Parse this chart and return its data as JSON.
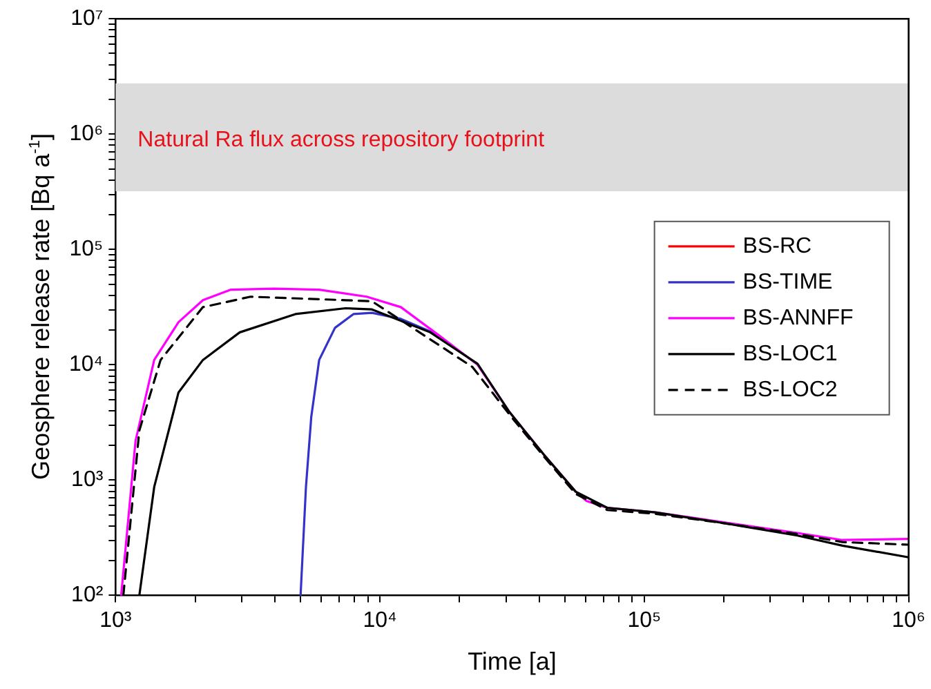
{
  "chart_data": {
    "type": "line",
    "xlabel": "Time [a]",
    "ylabel": "Geosphere release rate [Bq a$^{-1}$]",
    "log": "xy",
    "legend": "right",
    "xlim": [
      1000,
      1000000
    ],
    "ylim": [
      100,
      10000000
    ],
    "xticks": [
      {
        "value": 1000,
        "label": "10³"
      },
      {
        "value": 2000,
        "label": null
      },
      {
        "value": 3000,
        "label": null
      },
      {
        "value": 4000,
        "label": null
      },
      {
        "value": 5000,
        "label": null
      },
      {
        "value": 6000,
        "label": null
      },
      {
        "value": 7000,
        "label": null
      },
      {
        "value": 8000,
        "label": null
      },
      {
        "value": 9000,
        "label": null
      },
      {
        "value": 10000,
        "label": "10⁴"
      },
      {
        "value": 20000,
        "label": null
      },
      {
        "value": 30000,
        "label": null
      },
      {
        "value": 40000,
        "label": null
      },
      {
        "value": 50000,
        "label": null
      },
      {
        "value": 60000,
        "label": null
      },
      {
        "value": 70000,
        "label": null
      },
      {
        "value": 80000,
        "label": null
      },
      {
        "value": 90000,
        "label": null
      },
      {
        "value": 100000,
        "label": "10⁵"
      },
      {
        "value": 200000,
        "label": null
      },
      {
        "value": 300000,
        "label": null
      },
      {
        "value": 400000,
        "label": null
      },
      {
        "value": 500000,
        "label": null
      },
      {
        "value": 600000,
        "label": null
      },
      {
        "value": 700000,
        "label": null
      },
      {
        "value": 800000,
        "label": null
      },
      {
        "value": 900000,
        "label": null
      },
      {
        "value": 1000000,
        "label": "10⁶"
      }
    ],
    "yticks": [
      {
        "value": 100,
        "label": "10²"
      },
      {
        "value": 200,
        "label": null
      },
      {
        "value": 300,
        "label": null
      },
      {
        "value": 400,
        "label": null
      },
      {
        "value": 500,
        "label": null
      },
      {
        "value": 600,
        "label": null
      },
      {
        "value": 700,
        "label": null
      },
      {
        "value": 800,
        "label": null
      },
      {
        "value": 900,
        "label": null
      },
      {
        "value": 1000,
        "label": "10³"
      },
      {
        "value": 2000,
        "label": null
      },
      {
        "value": 3000,
        "label": null
      },
      {
        "value": 4000,
        "label": null
      },
      {
        "value": 5000,
        "label": null
      },
      {
        "value": 6000,
        "label": null
      },
      {
        "value": 7000,
        "label": null
      },
      {
        "value": 8000,
        "label": null
      },
      {
        "value": 9000,
        "label": null
      },
      {
        "value": 10000,
        "label": "10⁴"
      },
      {
        "value": 20000,
        "label": null
      },
      {
        "value": 30000,
        "label": null
      },
      {
        "value": 40000,
        "label": null
      },
      {
        "value": 50000,
        "label": null
      },
      {
        "value": 60000,
        "label": null
      },
      {
        "value": 70000,
        "label": null
      },
      {
        "value": 80000,
        "label": null
      },
      {
        "value": 90000,
        "label": null
      },
      {
        "value": 100000,
        "label": "10⁵"
      },
      {
        "value": 200000,
        "label": null
      },
      {
        "value": 300000,
        "label": null
      },
      {
        "value": 400000,
        "label": null
      },
      {
        "value": 500000,
        "label": null
      },
      {
        "value": 600000,
        "label": null
      },
      {
        "value": 700000,
        "label": null
      },
      {
        "value": 800000,
        "label": null
      },
      {
        "value": 900000,
        "label": null
      },
      {
        "value": 1000000,
        "label": "10⁶"
      },
      {
        "value": 2000000,
        "label": null
      },
      {
        "value": 3000000,
        "label": null
      },
      {
        "value": 4000000,
        "label": null
      },
      {
        "value": 5000000,
        "label": null
      },
      {
        "value": 6000000,
        "label": null
      },
      {
        "value": 7000000,
        "label": null
      },
      {
        "value": 8000000,
        "label": null
      },
      {
        "value": 9000000,
        "label": null
      },
      {
        "value": 10000000,
        "label": "10⁷"
      }
    ],
    "bands": [
      {
        "axis": "y",
        "from": 320000,
        "to": 2750000,
        "label": "Natural Ra flux across repository footprint",
        "color": "#dcdcdc"
      }
    ],
    "series": [
      {
        "name": "BS-RC",
        "color": "#ff0000"
      },
      {
        "name": "BS-TIME",
        "color": "#3333cc",
        "x": [
          5010,
          5250,
          5500,
          5890,
          6760,
          7940,
          9330,
          12000,
          16600
        ],
        "values": [
          100,
          870,
          3550,
          11000,
          20900,
          27500,
          28200,
          25000,
          18200
        ]
      },
      {
        "name": "BS-ANNFF",
        "color": "#ff00ff",
        "x": [
          1050,
          1190,
          1400,
          1730,
          2140,
          2720,
          3980,
          5890,
          8910,
          12000,
          16600,
          23400,
          30900,
          41700,
          47900,
          55000,
          60300,
          72400,
          110000,
          204000,
          380000,
          562000,
          1000000
        ],
        "values": [
          100,
          2190,
          11000,
          23400,
          36300,
          44700,
          45700,
          44700,
          38900,
          31600,
          18200,
          10000,
          3890,
          1660,
          1150,
          794,
          661,
          575,
          525,
          427,
          347,
          302,
          309
        ]
      },
      {
        "name": "BS-LOC1",
        "color": "#000000",
        "x": [
          1230,
          1400,
          1730,
          2140,
          2950,
          4790,
          7410,
          9330,
          15500,
          23400,
          30900,
          41700,
          55000,
          72400,
          110000,
          204000,
          380000,
          562000,
          1000000
        ],
        "values": [
          100,
          870,
          5750,
          11000,
          19100,
          27500,
          30900,
          30200,
          19100,
          10200,
          3890,
          1660,
          794,
          575,
          525,
          420,
          330,
          270,
          214
        ]
      },
      {
        "name": "BS-LOC2",
        "color": "#000000",
        "line_style": "dashed",
        "x": [
          1070,
          1230,
          1480,
          2140,
          3240,
          7410,
          9330,
          15500,
          22400,
          30900,
          41700,
          55000,
          72400,
          110000,
          204000,
          380000,
          562000,
          1000000
        ],
        "values": [
          100,
          2690,
          11000,
          31600,
          38900,
          36300,
          35500,
          16600,
          9550,
          3700,
          1600,
          760,
          550,
          510,
          420,
          340,
          290,
          275
        ]
      }
    ]
  }
}
